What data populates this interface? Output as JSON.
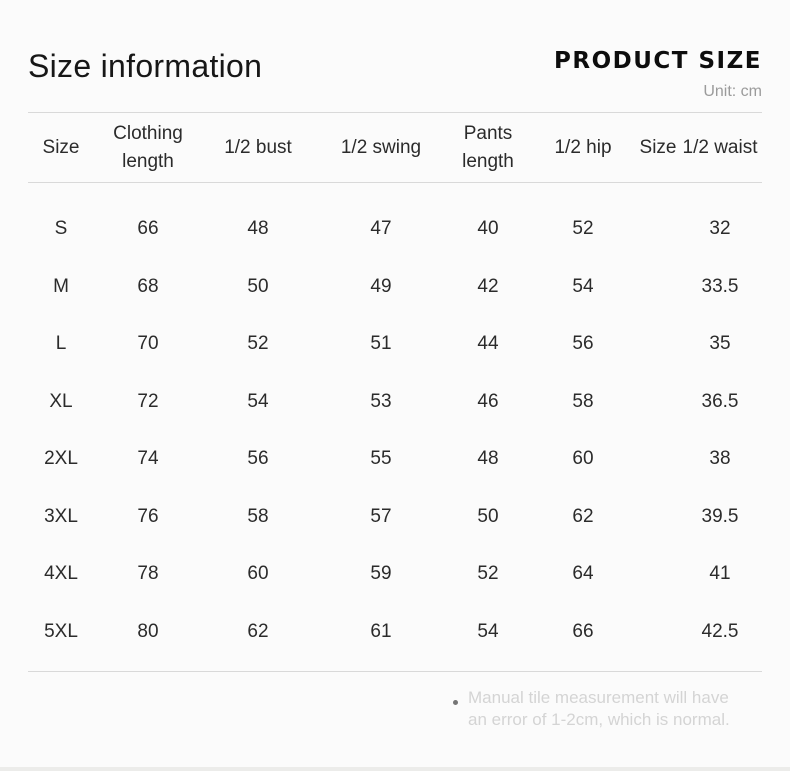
{
  "header": {
    "title": "Size information",
    "brand": "PRODUCT SIZE",
    "unit": "Unit: cm"
  },
  "table": {
    "columns": [
      "Size",
      "Clothing length",
      "1/2 bust",
      "1/2 swing",
      "Pants length",
      "1/2 hip",
      "Size",
      "1/2 waist"
    ],
    "rows": [
      [
        "S",
        "66",
        "48",
        "47",
        "40",
        "52",
        "",
        "32"
      ],
      [
        "M",
        "68",
        "50",
        "49",
        "42",
        "54",
        "",
        "33.5"
      ],
      [
        "L",
        "70",
        "52",
        "51",
        "44",
        "56",
        "",
        "35"
      ],
      [
        "XL",
        "72",
        "54",
        "53",
        "46",
        "58",
        "",
        "36.5"
      ],
      [
        "2XL",
        "74",
        "56",
        "55",
        "48",
        "60",
        "",
        "38"
      ],
      [
        "3XL",
        "76",
        "58",
        "57",
        "50",
        "62",
        "",
        "39.5"
      ],
      [
        "4XL",
        "78",
        "60",
        "59",
        "52",
        "64",
        "",
        "41"
      ],
      [
        "5XL",
        "80",
        "62",
        "61",
        "54",
        "66",
        "",
        "42.5"
      ]
    ]
  },
  "footnote": {
    "lines": [
      "Manual tile measurement will have",
      "an error of 1-2cm, which is normal."
    ]
  },
  "colors": {
    "background": "#fbfbfb",
    "text": "#2b2b2b",
    "table_border": "#d9d9d9",
    "unit_gray": "#9b9b9b",
    "footnote_gray": "#d4d4d4",
    "bullet_gray": "#757575",
    "bottom_strip": "#ececea"
  }
}
